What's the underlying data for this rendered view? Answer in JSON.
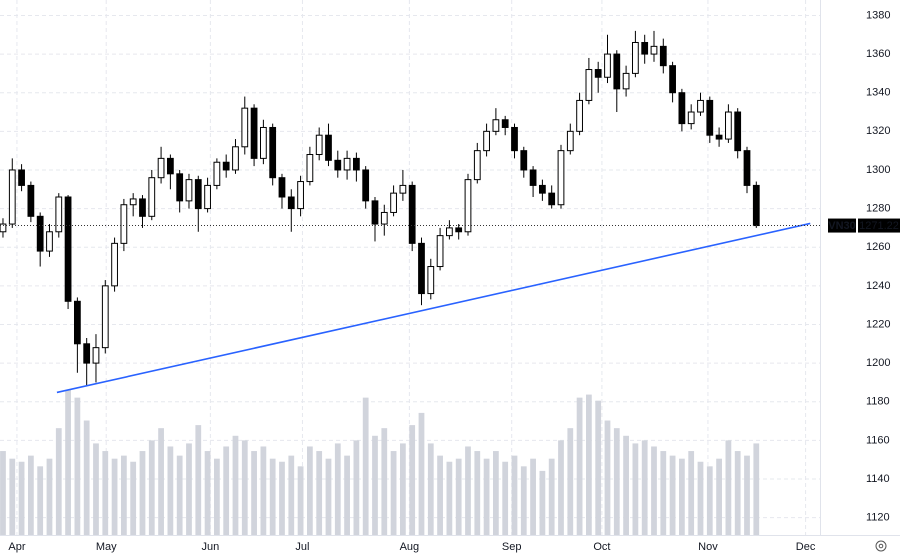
{
  "chart_data": {
    "type": "candlestick",
    "symbol": "VN30",
    "up_color": "#ffffff",
    "down_color": "#000000",
    "volume_color": "#d1d4dc",
    "trendline": {
      "x": [
        5.8,
        86.8
      ],
      "y": [
        1184.8,
        1272.3
      ],
      "color": "#2962ff"
    },
    "xlim": [
      -0.32,
      87.85
    ],
    "xticks": [
      {
        "value": 1.5,
        "label": "Apr"
      },
      {
        "value": 11.1,
        "label": "May"
      },
      {
        "value": 22.3,
        "label": "Jun"
      },
      {
        "value": 32.2,
        "label": "Jul"
      },
      {
        "value": 43.7,
        "label": "Aug"
      },
      {
        "value": 54.7,
        "label": "Sep"
      },
      {
        "value": 64.4,
        "label": "Oct"
      },
      {
        "value": 75.8,
        "label": "Nov"
      },
      {
        "value": 86.3,
        "label": "Dec"
      }
    ],
    "ylim": [
      1111,
      1388
    ],
    "yticks": [
      1120,
      1140,
      1160,
      1180,
      1200,
      1220,
      1240,
      1260,
      1280,
      1300,
      1320,
      1340,
      1360,
      1380
    ],
    "grid": true,
    "open": [
      1268,
      1272,
      1300,
      1292,
      1276,
      1258,
      1268,
      1286,
      1232,
      1210,
      1200,
      1208,
      1240,
      1262,
      1282,
      1285,
      1276,
      1296,
      1306,
      1298,
      1284,
      1295,
      1280,
      1292,
      1304,
      1300,
      1312,
      1332,
      1306,
      1322,
      1296,
      1286,
      1280,
      1294,
      1308,
      1318,
      1305,
      1300,
      1306,
      1300,
      1284,
      1272,
      1278,
      1288,
      1292,
      1262,
      1236,
      1250,
      1266,
      1270,
      1268,
      1295,
      1310,
      1320,
      1326,
      1322,
      1310,
      1300,
      1292,
      1288,
      1282,
      1310,
      1320,
      1336,
      1352,
      1348,
      1360,
      1342,
      1350,
      1366,
      1360,
      1364,
      1354,
      1340,
      1324,
      1330,
      1336,
      1318,
      1316,
      1330,
      1310,
      1292
    ],
    "high": [
      1275,
      1306,
      1303,
      1294,
      1278,
      1272,
      1288,
      1287,
      1234,
      1213,
      1215,
      1243,
      1265,
      1285,
      1288,
      1287,
      1300,
      1312,
      1308,
      1300,
      1298,
      1297,
      1296,
      1306,
      1308,
      1316,
      1338,
      1334,
      1326,
      1324,
      1298,
      1290,
      1297,
      1312,
      1322,
      1324,
      1310,
      1310,
      1309,
      1302,
      1286,
      1282,
      1292,
      1300,
      1294,
      1265,
      1254,
      1270,
      1274,
      1272,
      1298,
      1314,
      1324,
      1332,
      1328,
      1324,
      1312,
      1302,
      1295,
      1292,
      1313,
      1324,
      1340,
      1358,
      1356,
      1370,
      1362,
      1354,
      1372,
      1370,
      1372,
      1368,
      1356,
      1342,
      1334,
      1340,
      1338,
      1322,
      1334,
      1332,
      1312,
      1294
    ],
    "low": [
      1265,
      1270,
      1289,
      1273,
      1250,
      1255,
      1265,
      1228,
      1195,
      1188,
      1190,
      1205,
      1237,
      1258,
      1276,
      1270,
      1274,
      1293,
      1290,
      1278,
      1280,
      1268,
      1278,
      1290,
      1296,
      1298,
      1308,
      1302,
      1303,
      1292,
      1280,
      1268,
      1276,
      1292,
      1305,
      1302,
      1296,
      1295,
      1294,
      1280,
      1263,
      1266,
      1276,
      1284,
      1258,
      1230,
      1233,
      1248,
      1264,
      1264,
      1266,
      1293,
      1307,
      1318,
      1318,
      1306,
      1296,
      1286,
      1284,
      1280,
      1280,
      1308,
      1318,
      1334,
      1340,
      1345,
      1330,
      1338,
      1348,
      1355,
      1356,
      1350,
      1335,
      1320,
      1321,
      1328,
      1314,
      1312,
      1314,
      1306,
      1288,
      1270
    ],
    "close": [
      1272,
      1300,
      1292,
      1276,
      1258,
      1268,
      1286,
      1232,
      1210,
      1200,
      1208,
      1240,
      1262,
      1282,
      1285,
      1276,
      1296,
      1306,
      1298,
      1284,
      1295,
      1280,
      1292,
      1304,
      1300,
      1312,
      1332,
      1306,
      1322,
      1296,
      1286,
      1280,
      1294,
      1308,
      1318,
      1305,
      1300,
      1306,
      1300,
      1284,
      1272,
      1278,
      1288,
      1292,
      1262,
      1236,
      1250,
      1266,
      1270,
      1268,
      1295,
      1310,
      1320,
      1326,
      1322,
      1310,
      1300,
      1292,
      1288,
      1282,
      1310,
      1320,
      1336,
      1352,
      1348,
      1360,
      1342,
      1350,
      1366,
      1360,
      1364,
      1354,
      1340,
      1324,
      1330,
      1336,
      1318,
      1316,
      1330,
      1310,
      1292,
      1271.22
    ],
    "volume": [
      55,
      50,
      48,
      52,
      45,
      50,
      70,
      95,
      90,
      75,
      60,
      55,
      50,
      52,
      48,
      55,
      62,
      70,
      58,
      52,
      60,
      72,
      55,
      50,
      58,
      65,
      62,
      55,
      58,
      50,
      48,
      52,
      45,
      58,
      55,
      50,
      60,
      52,
      62,
      90,
      65,
      70,
      55,
      60,
      72,
      80,
      60,
      52,
      48,
      50,
      58,
      55,
      50,
      55,
      48,
      52,
      45,
      50,
      42,
      50,
      62,
      70,
      90,
      92,
      88,
      75,
      70,
      65,
      60,
      62,
      58,
      55,
      52,
      50,
      55,
      48,
      45,
      50,
      62,
      55,
      52,
      60
    ]
  }
}
